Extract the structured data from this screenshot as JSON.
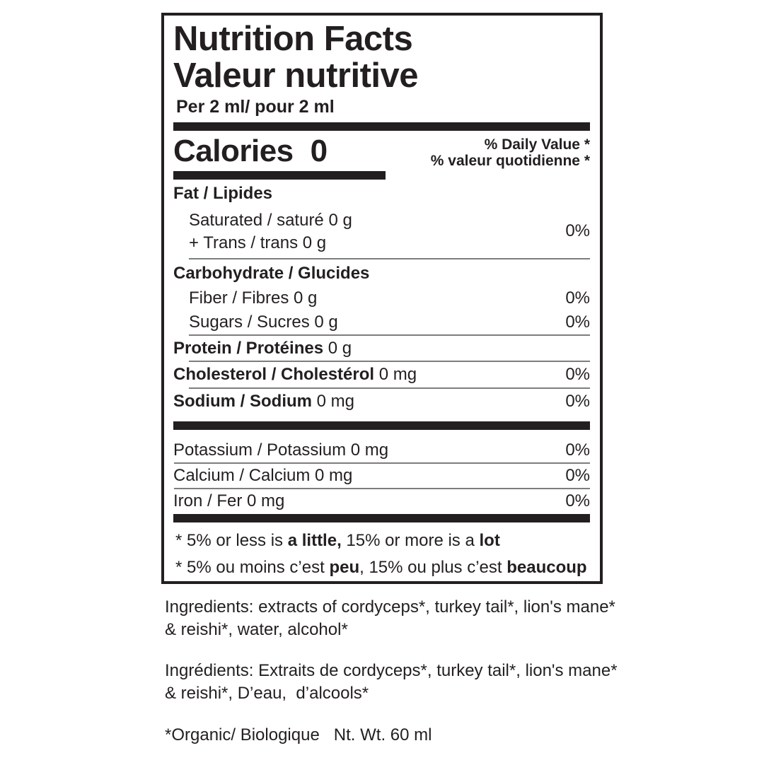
{
  "colors": {
    "ink": "#231f20",
    "thin_rule": "#7d7d7d",
    "background": "#ffffff"
  },
  "panel": {
    "title_en": "Nutrition Facts",
    "title_fr": "Valeur nutritive",
    "serving": "Per 2 ml/ pour 2 ml",
    "calories_label": "Calories",
    "calories_value": "0",
    "daily_value_en": "% Daily Value *",
    "daily_value_fr": "% valeur quotidienne *"
  },
  "nutrients": {
    "fat_header": "Fat / Lipides",
    "saturated_line1": "Saturated / saturé 0 g",
    "saturated_line2": "+ Trans / trans 0 g",
    "saturated_dv": "0%",
    "carb_header": "Carbohydrate / Glucides",
    "fiber_label": "Fiber / Fibres 0 g",
    "fiber_dv": "0%",
    "sugars_label": "Sugars / Sucres 0 g",
    "sugars_dv": "0%",
    "protein_bold": "Protein / Protéines",
    "protein_rest": " 0 g",
    "cholesterol_bold": "Cholesterol / Cholestérol",
    "cholesterol_rest": " 0 mg",
    "cholesterol_dv": "0%",
    "sodium_bold": "Sodium / Sodium",
    "sodium_rest": " 0 mg",
    "sodium_dv": "0%",
    "potassium_label": "Potassium / Potassium 0 mg",
    "potassium_dv": "0%",
    "calcium_label": "Calcium / Calcium 0 mg",
    "calcium_dv": "0%",
    "iron_label": "Iron / Fer 0 mg",
    "iron_dv": "0%"
  },
  "footnote": {
    "en_pre": "* 5% or less is ",
    "en_bold1": "a little,",
    "en_mid": " 15% or more is a ",
    "en_bold2": "lot",
    "fr_pre": "* 5% ou moins c’est ",
    "fr_bold1": "peu",
    "fr_mid": ", 15% ou plus c’est ",
    "fr_bold2": "beaucoup"
  },
  "ingredients": {
    "en_line1": "Ingredients: extracts of cordyceps*, turkey tail*, lion's mane*",
    "en_line2": "& reishi*, water, alcohol*",
    "fr_line1": "Ingrédients: Extraits de cordyceps*, turkey tail*, lion's mane*",
    "fr_line2": "& reishi*, D’eau,  d’alcools*",
    "organic_note": "*Organic/ Biologique   Nt. Wt. 60 ml"
  }
}
